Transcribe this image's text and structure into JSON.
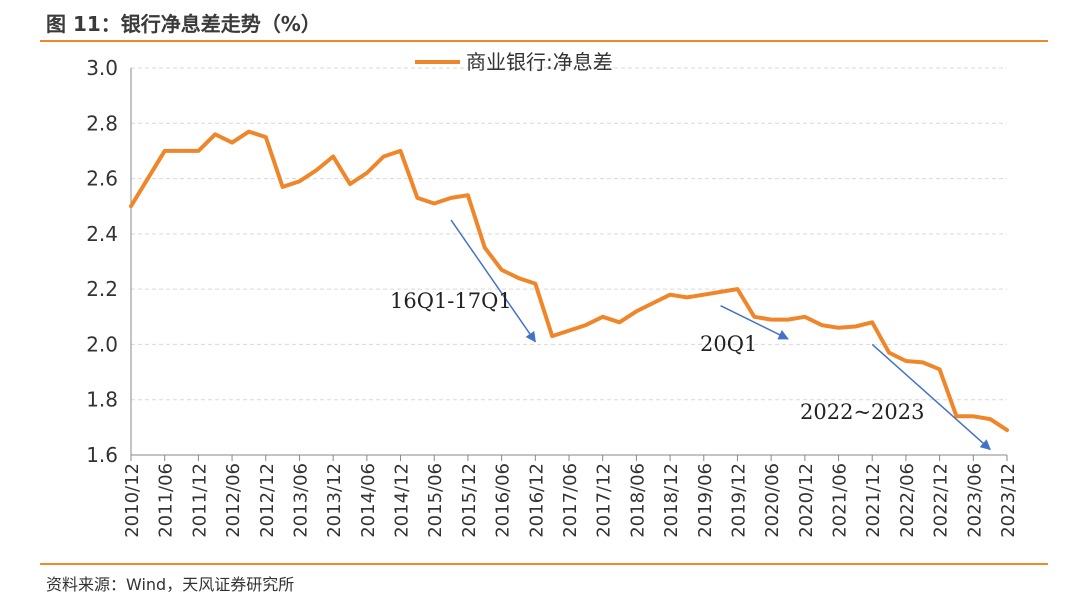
{
  "header": {
    "title": "图 11：银行净息差走势（%）"
  },
  "footer": {
    "source": "资料来源：Wind，天风证券研究所"
  },
  "colors": {
    "line": "#f0862a",
    "annotation": "#4472c4",
    "accent": "#ee8a2a",
    "grid": "#d9d9d9",
    "axis": "#888888"
  },
  "chart_data": {
    "type": "line",
    "title": "",
    "xlabel": "",
    "ylabel": "",
    "ylim": [
      1.6,
      3.0
    ],
    "yticks": [
      "1.6",
      "1.8",
      "2.0",
      "2.2",
      "2.4",
      "2.6",
      "2.8",
      "3.0"
    ],
    "grid": "horizontal dashed",
    "legend": "top-center",
    "x_tick_labels": [
      "2010/12",
      "2011/06",
      "2011/12",
      "2012/06",
      "2012/12",
      "2013/06",
      "2013/12",
      "2014/06",
      "2014/12",
      "2015/06",
      "2015/12",
      "2016/06",
      "2016/12",
      "2017/06",
      "2017/12",
      "2018/06",
      "2018/12",
      "2019/06",
      "2019/12",
      "2020/06",
      "2020/12",
      "2021/06",
      "2021/12",
      "2022/06",
      "2022/12",
      "2023/06",
      "2023/12"
    ],
    "x": [
      "2010/12",
      "2011/03",
      "2011/06",
      "2011/09",
      "2011/12",
      "2012/03",
      "2012/06",
      "2012/09",
      "2012/12",
      "2013/03",
      "2013/06",
      "2013/09",
      "2013/12",
      "2014/03",
      "2014/06",
      "2014/09",
      "2014/12",
      "2015/03",
      "2015/06",
      "2015/09",
      "2015/12",
      "2016/03",
      "2016/06",
      "2016/09",
      "2016/12",
      "2017/03",
      "2017/06",
      "2017/09",
      "2017/12",
      "2018/03",
      "2018/06",
      "2018/09",
      "2018/12",
      "2019/03",
      "2019/06",
      "2019/09",
      "2019/12",
      "2020/03",
      "2020/06",
      "2020/09",
      "2020/12",
      "2021/03",
      "2021/06",
      "2021/09",
      "2021/12",
      "2022/03",
      "2022/06",
      "2022/09",
      "2022/12",
      "2023/03",
      "2023/06",
      "2023/09",
      "2023/12"
    ],
    "series": [
      {
        "name": "商业银行:净息差",
        "values": [
          2.5,
          2.6,
          2.7,
          2.7,
          2.7,
          2.76,
          2.73,
          2.77,
          2.75,
          2.57,
          2.59,
          2.63,
          2.68,
          2.58,
          2.62,
          2.68,
          2.7,
          2.53,
          2.51,
          2.53,
          2.54,
          2.35,
          2.27,
          2.24,
          2.22,
          2.03,
          2.05,
          2.07,
          2.1,
          2.08,
          2.12,
          2.15,
          2.18,
          2.17,
          2.18,
          2.19,
          2.2,
          2.1,
          2.09,
          2.09,
          2.1,
          2.07,
          2.06,
          2.065,
          2.08,
          1.97,
          1.94,
          1.935,
          1.91,
          1.74,
          1.74,
          1.73,
          1.69
        ]
      }
    ],
    "annotations": [
      {
        "text": "16Q1-17Q1",
        "from": [
          "2015/09",
          2.45
        ],
        "to": [
          "2016/12",
          2.01
        ]
      },
      {
        "text": "20Q1",
        "from": [
          "2019/09",
          2.14
        ],
        "to": [
          "2020/09",
          2.02
        ]
      },
      {
        "text": "2022~2023",
        "from": [
          "2021/12",
          2.0
        ],
        "to": [
          "2023/09",
          1.62
        ]
      }
    ]
  }
}
